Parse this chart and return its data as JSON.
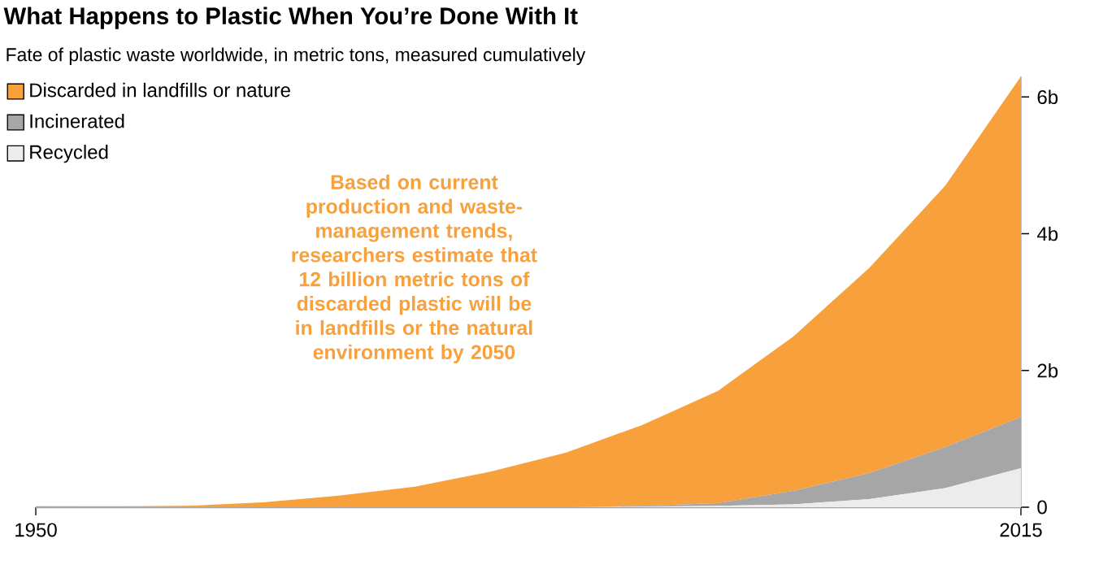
{
  "chart_data": {
    "type": "area",
    "stacked": true,
    "title": "What Happens to Plastic When You’re Done With It",
    "subtitle": "Fate of plastic waste worldwide, in metric tons, measured cumulatively",
    "x": [
      1950,
      1955,
      1960,
      1965,
      1970,
      1975,
      1980,
      1985,
      1990,
      1995,
      2000,
      2005,
      2010,
      2015
    ],
    "series": [
      {
        "name": "Recycled",
        "color": "#ececec",
        "values": [
          0,
          0,
          0,
          0,
          0,
          0,
          0,
          0,
          0.01,
          0.02,
          0.04,
          0.12,
          0.28,
          0.57
        ]
      },
      {
        "name": "Incinerated",
        "color": "#a6a6a6",
        "values": [
          0,
          0,
          0,
          0,
          0,
          0,
          0,
          0,
          0.01,
          0.04,
          0.2,
          0.38,
          0.6,
          0.75
        ]
      },
      {
        "name": "Discarded in landfills or nature",
        "color": "#f7a03c",
        "values": [
          0,
          0.01,
          0.02,
          0.07,
          0.17,
          0.3,
          0.52,
          0.8,
          1.18,
          1.64,
          2.26,
          3.0,
          3.82,
          4.98
        ]
      }
    ],
    "xlim": [
      1950,
      2015
    ],
    "xticks": [
      1950,
      2015
    ],
    "ylim": [
      0,
      6.3
    ],
    "yticks": [
      {
        "value": 0,
        "label": "0"
      },
      {
        "value": 2,
        "label": "2b"
      },
      {
        "value": 4,
        "label": "4b"
      },
      {
        "value": 6,
        "label": "6b"
      }
    ],
    "legend": "top left",
    "annotations": [
      "Based on current production and waste-management trends, researchers estimate that 12 billion metric tons of discarded plastic will be in landfills or the natural environment by 2050"
    ]
  }
}
